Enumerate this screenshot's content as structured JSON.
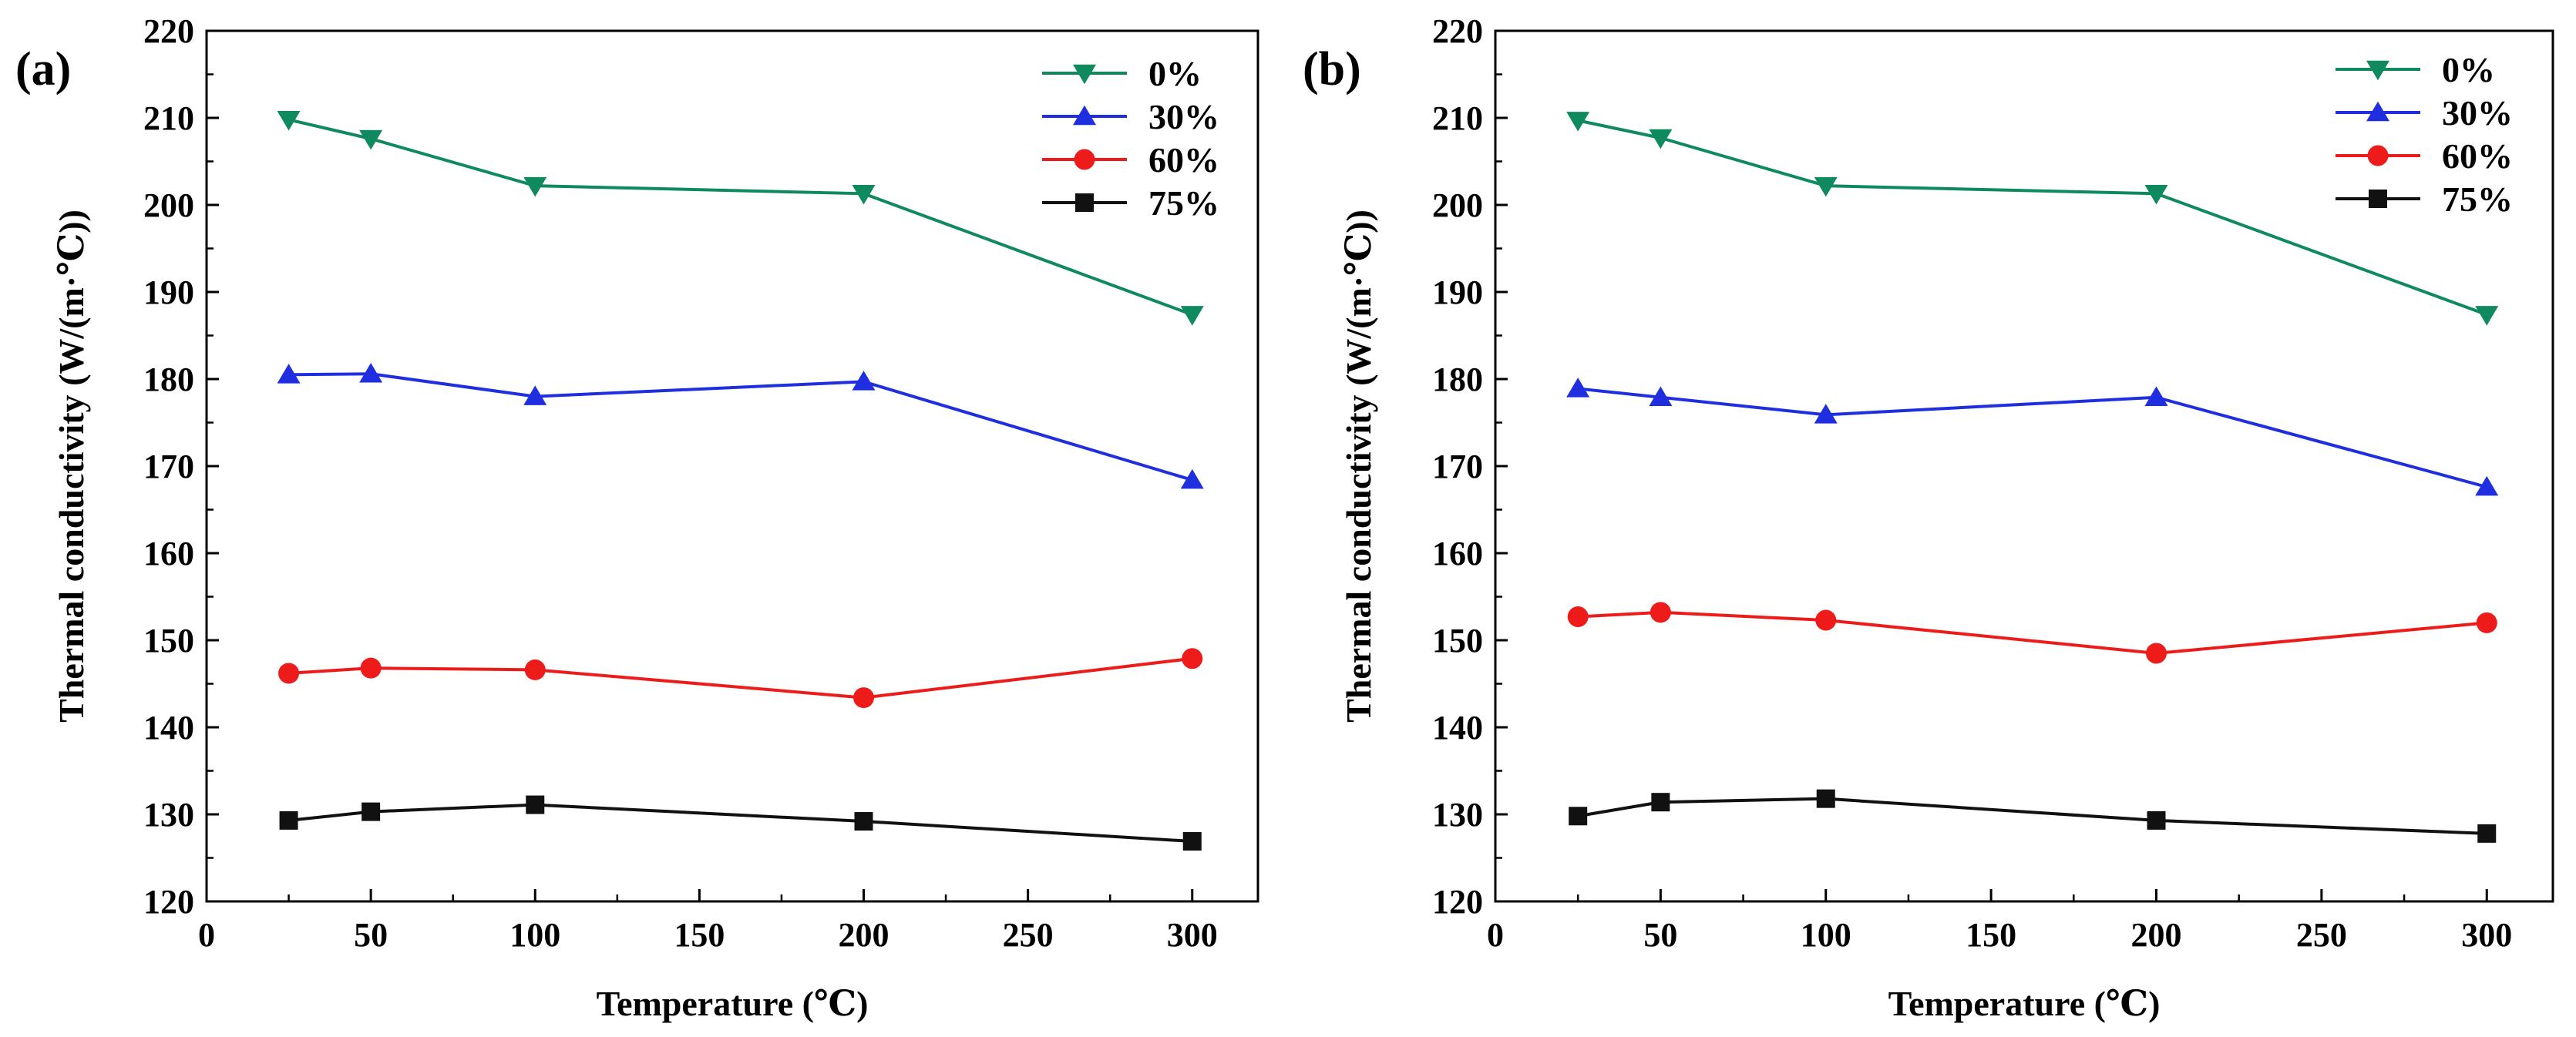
{
  "chart_data": [
    {
      "type": "line",
      "panel_label": "(a)",
      "xlabel": "Temperature (℃)",
      "ylabel": "Thermal conductivity (W/(m·℃))",
      "xlim": [
        0,
        320
      ],
      "ylim": [
        120,
        220
      ],
      "xticks": [
        0,
        50,
        100,
        150,
        200,
        250,
        300
      ],
      "yticks": [
        120,
        130,
        140,
        150,
        160,
        170,
        180,
        190,
        200,
        210,
        220
      ],
      "x": [
        25,
        50,
        100,
        200,
        300
      ],
      "legend_position": "top-right",
      "series": [
        {
          "name": "0%",
          "color": "#0f8a5f",
          "marker": "triangle-down",
          "values": [
            209.8,
            207.6,
            202.2,
            201.3,
            187.4
          ]
        },
        {
          "name": "30%",
          "color": "#1f2fe0",
          "marker": "triangle-up",
          "values": [
            180.5,
            180.6,
            178.0,
            179.7,
            168.4
          ]
        },
        {
          "name": "60%",
          "color": "#ee1b1b",
          "marker": "circle",
          "values": [
            146.2,
            146.8,
            146.6,
            143.4,
            147.9
          ]
        },
        {
          "name": "75%",
          "color": "#111111",
          "marker": "square",
          "values": [
            129.3,
            130.3,
            131.1,
            129.2,
            126.9
          ]
        }
      ]
    },
    {
      "type": "line",
      "panel_label": "(b)",
      "xlabel": "Temperature (℃)",
      "ylabel": "Thermal conductivity (W/(m·℃))",
      "xlim": [
        0,
        320
      ],
      "ylim": [
        120,
        220
      ],
      "xticks": [
        0,
        50,
        100,
        150,
        200,
        250,
        300
      ],
      "yticks": [
        120,
        130,
        140,
        150,
        160,
        170,
        180,
        190,
        200,
        210,
        220
      ],
      "x": [
        25,
        50,
        100,
        200,
        300
      ],
      "legend_position": "top-right",
      "series": [
        {
          "name": "0%",
          "color": "#0f8a5f",
          "marker": "triangle-down",
          "values": [
            209.7,
            207.7,
            202.2,
            201.3,
            187.4
          ]
        },
        {
          "name": "30%",
          "color": "#1f2fe0",
          "marker": "triangle-up",
          "values": [
            178.9,
            177.9,
            175.9,
            177.9,
            167.6
          ]
        },
        {
          "name": "60%",
          "color": "#ee1b1b",
          "marker": "circle",
          "values": [
            152.7,
            153.2,
            152.3,
            148.5,
            152.0
          ]
        },
        {
          "name": "75%",
          "color": "#111111",
          "marker": "square",
          "values": [
            129.8,
            131.4,
            131.8,
            129.3,
            127.8
          ]
        }
      ]
    }
  ]
}
